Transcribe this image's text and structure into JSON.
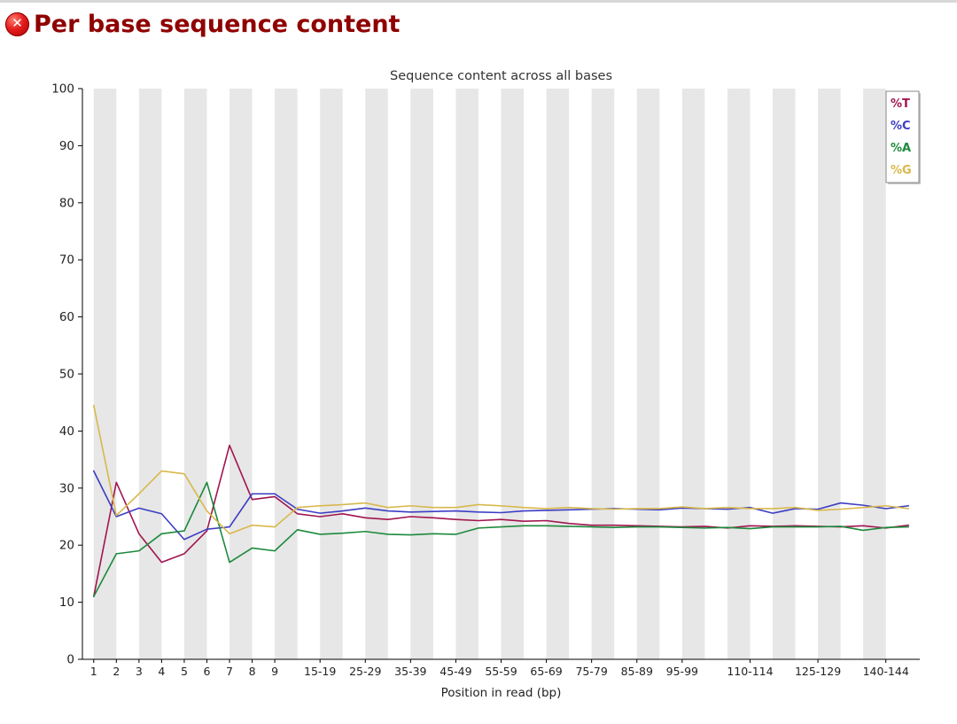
{
  "header": {
    "title": "Per base sequence content",
    "status": "fail",
    "title_color": "#8f0000"
  },
  "chart_data": {
    "type": "line",
    "title": "Sequence content across all bases",
    "xlabel": "Position in read (bp)",
    "ylim": [
      0,
      100
    ],
    "yticks": [
      0,
      10,
      20,
      30,
      40,
      50,
      60,
      70,
      80,
      90,
      100
    ],
    "grid": "alternating-vertical-bands",
    "band_color": "#e7e7e7",
    "plot_bg": "#ffffff",
    "axis_color": "#000000",
    "text_color": "#222222",
    "legend_position": "top-right",
    "legend_border_color": "#888888",
    "legend_bg": "#ffffff",
    "categories": [
      "1",
      "2",
      "3",
      "4",
      "5",
      "6",
      "7",
      "8",
      "9",
      "10-14",
      "15-19",
      "20-24",
      "25-29",
      "30-34",
      "35-39",
      "40-44",
      "45-49",
      "50-54",
      "55-59",
      "60-64",
      "65-69",
      "70-74",
      "75-79",
      "80-84",
      "85-89",
      "90-94",
      "95-99",
      "100-104",
      "105-109",
      "110-114",
      "115-119",
      "120-124",
      "125-129",
      "130-134",
      "135-139",
      "140-144",
      "145-149"
    ],
    "labeled_indices": [
      0,
      1,
      2,
      3,
      4,
      5,
      6,
      7,
      8,
      10,
      12,
      14,
      16,
      18,
      20,
      22,
      24,
      26,
      29,
      32,
      35
    ],
    "series": [
      {
        "name": "%T",
        "color": "#a0154f",
        "values": [
          11,
          31,
          22,
          17,
          18.5,
          22.5,
          37.5,
          28,
          28.5,
          25.5,
          25,
          25.5,
          24.8,
          24.5,
          25,
          24.8,
          24.5,
          24.3,
          24.5,
          24.2,
          24.3,
          23.8,
          23.5,
          23.5,
          23.4,
          23.3,
          23.2,
          23.3,
          23,
          23.4,
          23.3,
          23.4,
          23.3,
          23.2,
          23.4,
          23,
          23.5
        ]
      },
      {
        "name": "%C",
        "color": "#3c3cc3",
        "values": [
          33,
          25,
          26.5,
          25.5,
          21,
          22.8,
          23.2,
          29,
          29,
          26.3,
          25.6,
          26,
          26.5,
          26,
          25.8,
          25.9,
          26,
          25.8,
          25.7,
          26,
          26.1,
          26.2,
          26.3,
          26.4,
          26.3,
          26.2,
          26.5,
          26.4,
          26.3,
          26.6,
          25.6,
          26.4,
          26.3,
          27.4,
          27,
          26.4,
          26.9
        ]
      },
      {
        "name": "%A",
        "color": "#1c8a3c",
        "values": [
          11,
          18.5,
          19,
          22,
          22.5,
          31,
          17,
          19.5,
          19,
          22.7,
          21.9,
          22.1,
          22.4,
          21.9,
          21.8,
          22,
          21.9,
          23,
          23.2,
          23.4,
          23.4,
          23.3,
          23.2,
          23.1,
          23.2,
          23.2,
          23.1,
          23,
          23.1,
          22.9,
          23.2,
          23.2,
          23.2,
          23.3,
          22.6,
          23.1,
          23.2
        ]
      },
      {
        "name": "%G",
        "color": "#d8b84c",
        "values": [
          44.5,
          25.2,
          29,
          33,
          32.5,
          26,
          22,
          23.5,
          23.2,
          26.6,
          26.9,
          27.1,
          27.4,
          26.6,
          26.9,
          26.6,
          26.6,
          27.1,
          26.9,
          26.6,
          26.4,
          26.6,
          26.4,
          26.3,
          26.4,
          26.4,
          26.7,
          26.4,
          26.6,
          26.4,
          26.4,
          26.6,
          26.1,
          26.3,
          26.6,
          26.9,
          26.4
        ]
      }
    ]
  }
}
